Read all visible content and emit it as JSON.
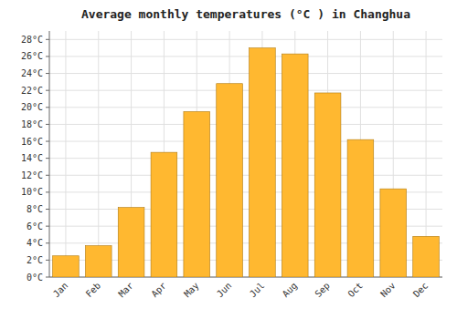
{
  "chart_data": {
    "type": "bar",
    "title": "Average monthly temperatures (°C ) in Changhua",
    "categories": [
      "Jan",
      "Feb",
      "Mar",
      "Apr",
      "May",
      "Jun",
      "Jul",
      "Aug",
      "Sep",
      "Oct",
      "Nov",
      "Dec"
    ],
    "values": [
      2.5,
      3.7,
      8.2,
      14.7,
      19.5,
      22.8,
      27.0,
      26.3,
      21.7,
      16.2,
      10.4,
      4.8
    ],
    "color": "#FFB830",
    "ylim": [
      0,
      29
    ],
    "yticks": [
      {
        "value": 0,
        "label": "0°C"
      },
      {
        "value": 2,
        "label": "2°C"
      },
      {
        "value": 4,
        "label": "4°C"
      },
      {
        "value": 6,
        "label": "6°C"
      },
      {
        "value": 8,
        "label": "8°C"
      },
      {
        "value": 10,
        "label": "10°C"
      },
      {
        "value": 12,
        "label": "12°C"
      },
      {
        "value": 14,
        "label": "14°C"
      },
      {
        "value": 16,
        "label": "16°C"
      },
      {
        "value": 18,
        "label": "18°C"
      },
      {
        "value": 20,
        "label": "20°C"
      },
      {
        "value": 22,
        "label": "22°C"
      },
      {
        "value": 24,
        "label": "24°C"
      },
      {
        "value": 26,
        "label": "26°C"
      },
      {
        "value": 28,
        "label": "28°C"
      }
    ],
    "grid": true
  }
}
